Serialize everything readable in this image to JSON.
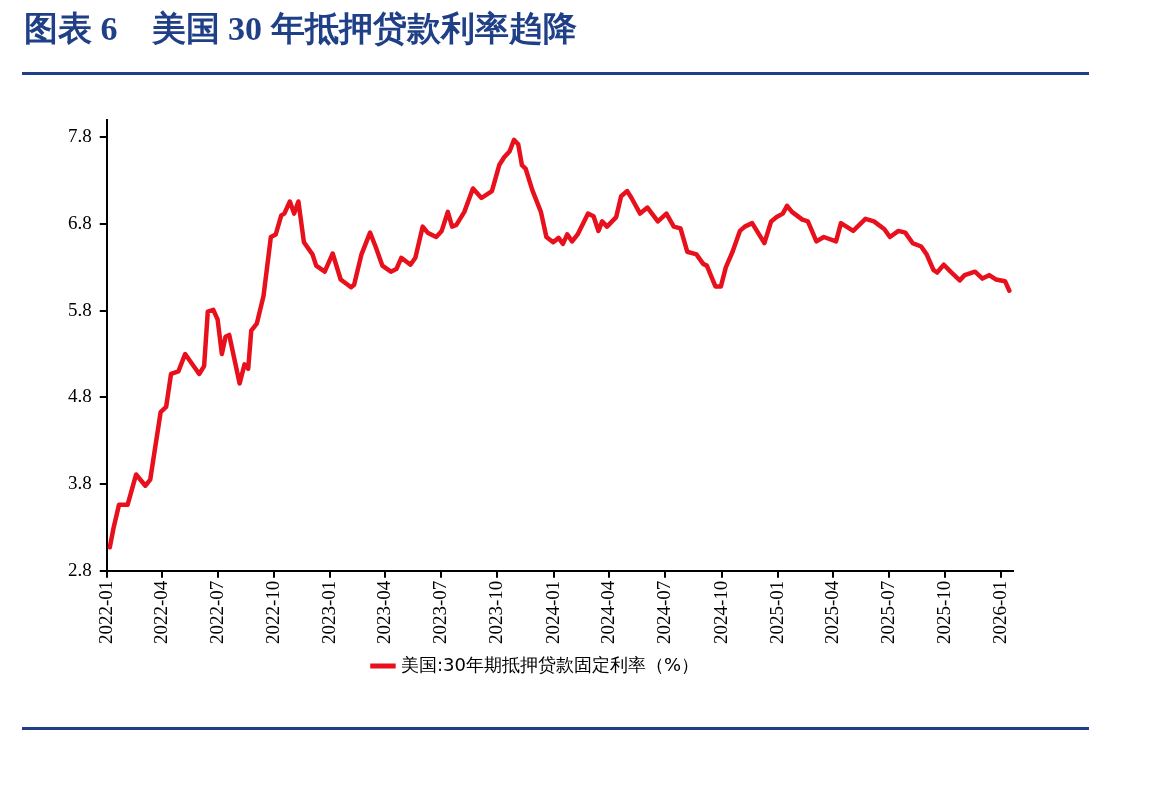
{
  "chart_data": {
    "type": "line",
    "title": "图表 6　美国 30 年抵押贷款利率趋降",
    "x": [
      "2022-01-06",
      "2022-01-12",
      "2022-01-21",
      "2022-02-04",
      "2022-02-18",
      "2022-03-05",
      "2022-03-13",
      "2022-03-30",
      "2022-04-08",
      "2022-04-16",
      "2022-04-28",
      "2022-05-09",
      "2022-06-01",
      "2022-06-09",
      "2022-06-15",
      "2022-06-24",
      "2022-07-01",
      "2022-07-08",
      "2022-07-14",
      "2022-07-20",
      "2022-08-06",
      "2022-08-14",
      "2022-08-20",
      "2022-08-25",
      "2022-09-03",
      "2022-09-14",
      "2022-09-26",
      "2022-10-04",
      "2022-10-13",
      "2022-10-18",
      "2022-10-27",
      "2022-11-03",
      "2022-11-10",
      "2022-11-19",
      "2022-12-03",
      "2022-12-09",
      "2022-12-23",
      "2023-01-05",
      "2023-01-18",
      "2023-02-04",
      "2023-02-09",
      "2023-02-21",
      "2023-03-07",
      "2023-03-16",
      "2023-03-27",
      "2023-04-10",
      "2023-04-19",
      "2023-04-27",
      "2023-05-12",
      "2023-05-20",
      "2023-06-01",
      "2023-06-09",
      "2023-06-23",
      "2023-07-02",
      "2023-07-12",
      "2023-07-19",
      "2023-07-26",
      "2023-08-08",
      "2023-08-22",
      "2023-09-05",
      "2023-09-22",
      "2023-10-04",
      "2023-10-12",
      "2023-10-21",
      "2023-10-28",
      "2023-11-04",
      "2023-11-10",
      "2023-11-16",
      "2023-11-27",
      "2023-12-11",
      "2023-12-20",
      "2023-12-31",
      "2024-01-09",
      "2024-01-16",
      "2024-01-23",
      "2024-01-31",
      "2024-02-09",
      "2024-02-26",
      "2024-03-06",
      "2024-03-14",
      "2024-03-20",
      "2024-03-28",
      "2024-04-12",
      "2024-04-20",
      "2024-04-30",
      "2024-05-07",
      "2024-05-21",
      "2024-06-02",
      "2024-06-19",
      "2024-07-03",
      "2024-07-15",
      "2024-07-26",
      "2024-08-06",
      "2024-08-21",
      "2024-09-01",
      "2024-09-07",
      "2024-09-21",
      "2024-09-30",
      "2024-10-08",
      "2024-10-19",
      "2024-10-31",
      "2024-11-08",
      "2024-11-20",
      "2024-12-10",
      "2024-12-21",
      "2024-12-30",
      "2025-01-09",
      "2025-01-16",
      "2025-01-24",
      "2025-02-10",
      "2025-02-19",
      "2025-03-05",
      "2025-03-17",
      "2025-04-06",
      "2025-04-14",
      "2025-05-04",
      "2025-05-24",
      "2025-06-07",
      "2025-06-24",
      "2025-07-03",
      "2025-07-17",
      "2025-07-28",
      "2025-08-09",
      "2025-08-23",
      "2025-09-01",
      "2025-09-12",
      "2025-09-18",
      "2025-09-29",
      "2025-10-10",
      "2025-10-25",
      "2025-11-02",
      "2025-11-19",
      "2025-12-01",
      "2025-12-12",
      "2025-12-23",
      "2026-01-07",
      "2026-01-14"
    ],
    "series": [
      {
        "name": "美国:30年期抵押贷款固定利率（%）",
        "color": "#e8101c",
        "values": [
          3.07,
          3.29,
          3.56,
          3.56,
          3.91,
          3.78,
          3.85,
          4.63,
          4.69,
          5.07,
          5.1,
          5.3,
          5.07,
          5.16,
          5.79,
          5.81,
          5.7,
          5.3,
          5.5,
          5.52,
          4.96,
          5.18,
          5.13,
          5.57,
          5.65,
          5.97,
          6.65,
          6.68,
          6.9,
          6.92,
          7.06,
          6.92,
          7.06,
          6.59,
          6.45,
          6.32,
          6.25,
          6.46,
          6.16,
          6.07,
          6.1,
          6.45,
          6.7,
          6.54,
          6.32,
          6.25,
          6.28,
          6.41,
          6.33,
          6.41,
          6.77,
          6.7,
          6.65,
          6.72,
          6.94,
          6.77,
          6.79,
          6.94,
          7.21,
          7.1,
          7.18,
          7.48,
          7.57,
          7.64,
          7.77,
          7.72,
          7.48,
          7.44,
          7.19,
          6.94,
          6.65,
          6.59,
          6.64,
          6.57,
          6.68,
          6.6,
          6.68,
          6.92,
          6.89,
          6.72,
          6.83,
          6.77,
          6.88,
          7.12,
          7.18,
          7.1,
          6.92,
          6.99,
          6.83,
          6.92,
          6.77,
          6.75,
          6.48,
          6.45,
          6.34,
          6.32,
          6.08,
          6.08,
          6.3,
          6.48,
          6.72,
          6.77,
          6.81,
          6.58,
          6.83,
          6.88,
          6.92,
          7.01,
          6.94,
          6.85,
          6.83,
          6.6,
          6.65,
          6.6,
          6.81,
          6.72,
          6.86,
          6.83,
          6.74,
          6.65,
          6.72,
          6.7,
          6.58,
          6.54,
          6.45,
          6.27,
          6.24,
          6.33,
          6.25,
          6.15,
          6.21,
          6.25,
          6.17,
          6.21,
          6.16,
          6.14,
          6.03
        ]
      }
    ],
    "xlim": [
      "2022-01-01",
      "2026-01-20"
    ],
    "xticks": [
      "2022-01",
      "2022-04",
      "2022-07",
      "2022-10",
      "2023-01",
      "2023-04",
      "2023-07",
      "2023-10",
      "2024-01",
      "2024-04",
      "2024-07",
      "2024-10",
      "2025-01",
      "2025-04",
      "2025-07",
      "2025-10",
      "2026-01"
    ],
    "ylim": [
      2.8,
      8.0
    ],
    "yticks": [
      2.8,
      3.8,
      4.8,
      5.8,
      6.8,
      7.8
    ],
    "grid": false,
    "legend": "bottom",
    "marker": "none",
    "line_style": "solid"
  }
}
